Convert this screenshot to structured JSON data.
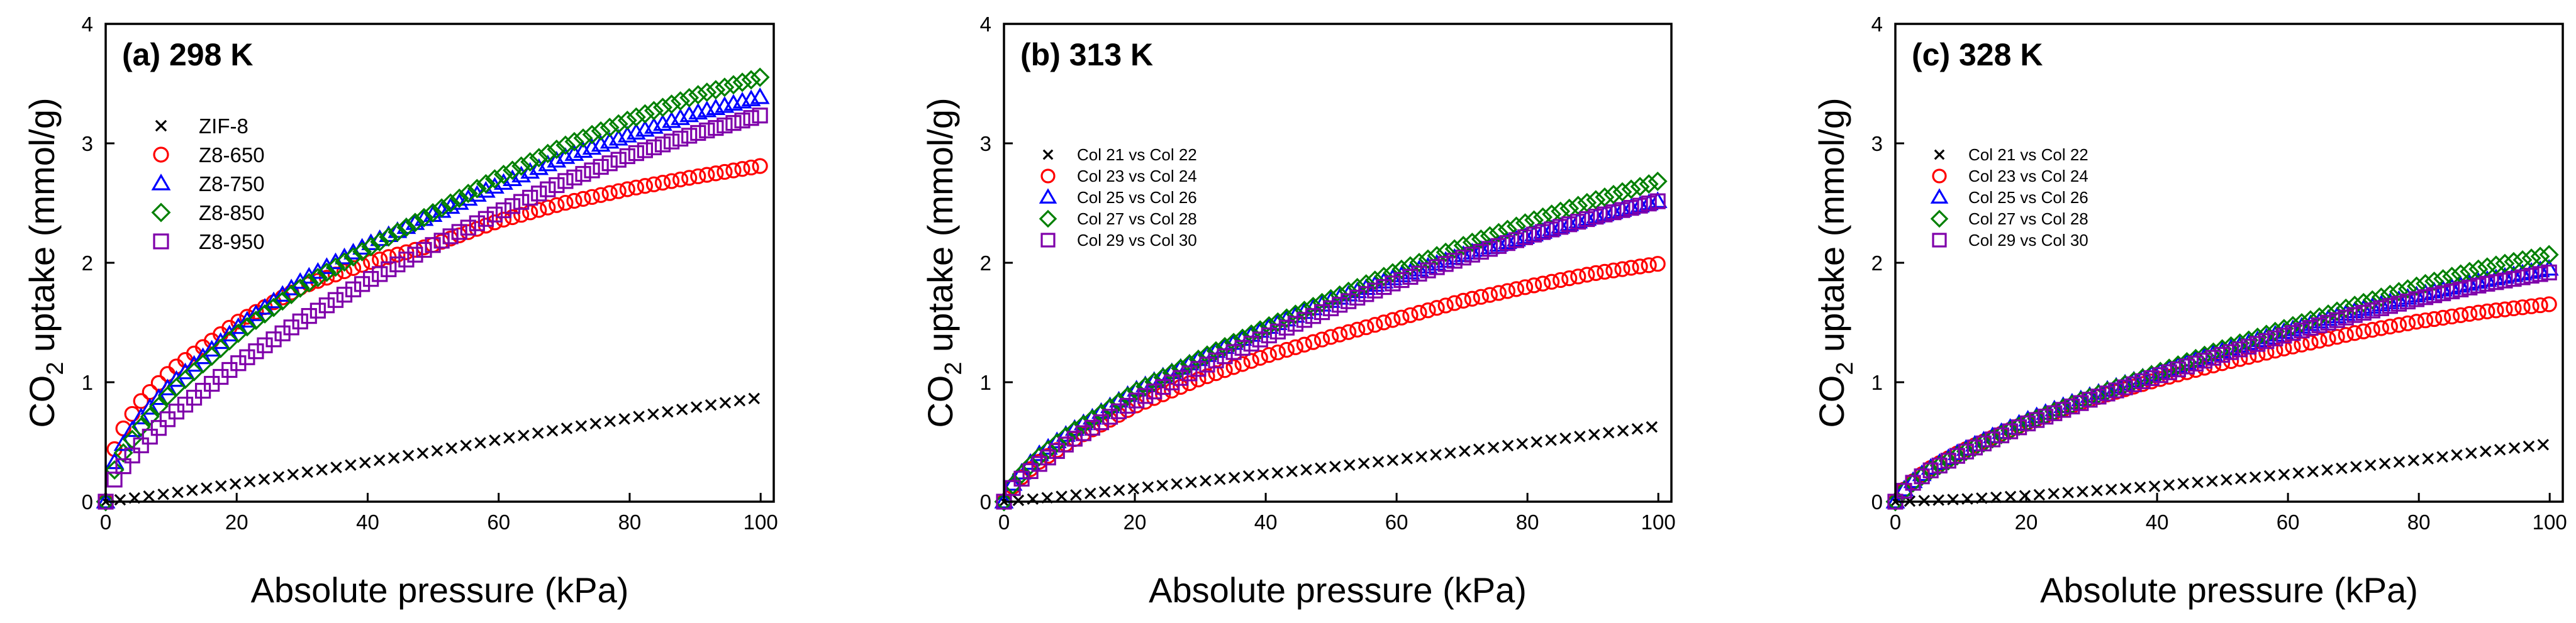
{
  "chart_data": [
    {
      "type": "scatter",
      "title": "(a) 298 K",
      "xlabel": "Absolute pressure (kPa)",
      "ylabel_main": "CO",
      "ylabel_sub": "2",
      "ylabel_rest": " uptake (mmol/g)",
      "xlim": [
        0,
        102
      ],
      "ylim": [
        0,
        4
      ],
      "xticks": [
        0,
        20,
        40,
        60,
        80,
        100
      ],
      "yticks": [
        0,
        1,
        2,
        3,
        4
      ],
      "xtick_labels": [
        "0",
        "20",
        "40",
        "60",
        "80",
        "100"
      ],
      "ytick_labels": [
        "0",
        "1",
        "2",
        "3",
        "4"
      ],
      "legend_position": "top-left",
      "series": [
        {
          "name": "ZIF-8",
          "marker": "cross",
          "color": "#000000",
          "x": [
            0,
            10,
            20,
            30,
            40,
            50,
            60,
            70,
            80,
            90,
            101
          ],
          "y": [
            0,
            0.07,
            0.15,
            0.24,
            0.33,
            0.42,
            0.52,
            0.61,
            0.7,
            0.79,
            0.88
          ]
        },
        {
          "name": "Z8-650",
          "marker": "circle",
          "color": "#ff0000",
          "x": [
            0,
            1,
            2,
            5,
            10,
            20,
            30,
            40,
            50,
            60,
            70,
            80,
            90,
            101
          ],
          "y": [
            0,
            0.38,
            0.55,
            0.82,
            1.1,
            1.5,
            1.8,
            2.0,
            2.15,
            2.35,
            2.5,
            2.62,
            2.72,
            2.82
          ]
        },
        {
          "name": "Z8-750",
          "marker": "triangle",
          "color": "#0000ff",
          "x": [
            0,
            1,
            2,
            5,
            10,
            20,
            30,
            40,
            50,
            60,
            70,
            80,
            90,
            101
          ],
          "y": [
            0,
            0.28,
            0.42,
            0.68,
            0.98,
            1.45,
            1.85,
            2.15,
            2.4,
            2.65,
            2.88,
            3.07,
            3.25,
            3.4
          ]
        },
        {
          "name": "Z8-850",
          "marker": "diamond",
          "color": "#008000",
          "x": [
            0,
            1,
            2,
            5,
            10,
            20,
            30,
            40,
            50,
            60,
            70,
            80,
            90,
            101
          ],
          "y": [
            0,
            0.22,
            0.35,
            0.6,
            0.92,
            1.4,
            1.8,
            2.12,
            2.42,
            2.72,
            2.98,
            3.2,
            3.4,
            3.57
          ]
        },
        {
          "name": "Z8-950",
          "marker": "square",
          "color": "#7f00aa",
          "x": [
            0,
            1,
            2,
            5,
            10,
            20,
            30,
            40,
            50,
            60,
            70,
            80,
            90,
            101
          ],
          "y": [
            0,
            0.15,
            0.25,
            0.45,
            0.72,
            1.15,
            1.52,
            1.85,
            2.15,
            2.42,
            2.68,
            2.9,
            3.08,
            3.25
          ]
        }
      ]
    },
    {
      "type": "scatter",
      "title": "(b) 313 K",
      "xlabel": "Absolute pressure (kPa)",
      "ylabel_main": "CO",
      "ylabel_sub": "2",
      "ylabel_rest": " uptake (mmol/g)",
      "xlim": [
        0,
        102
      ],
      "ylim": [
        0,
        4
      ],
      "xticks": [
        0,
        20,
        40,
        60,
        80,
        100
      ],
      "yticks": [
        0,
        1,
        2,
        3,
        4
      ],
      "xtick_labels": [
        "0",
        "20",
        "40",
        "60",
        "80",
        "100"
      ],
      "ytick_labels": [
        "0",
        "1",
        "2",
        "3",
        "4"
      ],
      "legend_position": "top-left",
      "series": [
        {
          "name": "Col 21 vs Col 22",
          "marker": "cross",
          "color": "#000000",
          "x": [
            0,
            10,
            20,
            30,
            40,
            50,
            60,
            70,
            80,
            90,
            101
          ],
          "y": [
            0,
            0.05,
            0.11,
            0.17,
            0.23,
            0.29,
            0.35,
            0.42,
            0.49,
            0.56,
            0.64
          ]
        },
        {
          "name": "Col 23 vs Col 24",
          "marker": "circle",
          "color": "#ff0000",
          "x": [
            0,
            1,
            2,
            5,
            10,
            20,
            30,
            40,
            50,
            60,
            70,
            80,
            90,
            101
          ],
          "y": [
            0,
            0.1,
            0.17,
            0.32,
            0.5,
            0.8,
            1.03,
            1.22,
            1.38,
            1.53,
            1.68,
            1.8,
            1.91,
            2.0
          ]
        },
        {
          "name": "Col 25 vs Col 26",
          "marker": "triangle",
          "color": "#0000ff",
          "x": [
            0,
            1,
            2,
            5,
            10,
            20,
            30,
            40,
            50,
            60,
            70,
            80,
            90,
            101
          ],
          "y": [
            0,
            0.12,
            0.2,
            0.38,
            0.58,
            0.93,
            1.2,
            1.45,
            1.68,
            1.88,
            2.06,
            2.22,
            2.38,
            2.53
          ]
        },
        {
          "name": "Col 27 vs Col 28",
          "marker": "diamond",
          "color": "#008000",
          "x": [
            0,
            1,
            2,
            5,
            10,
            20,
            30,
            40,
            50,
            60,
            70,
            80,
            90,
            101
          ],
          "y": [
            0,
            0.11,
            0.19,
            0.36,
            0.57,
            0.92,
            1.2,
            1.46,
            1.7,
            1.93,
            2.14,
            2.34,
            2.52,
            2.7
          ]
        },
        {
          "name": "Col 29 vs Col 30",
          "marker": "square",
          "color": "#7f00aa",
          "x": [
            0,
            1,
            2,
            5,
            10,
            20,
            30,
            40,
            50,
            60,
            70,
            80,
            90,
            101
          ],
          "y": [
            0,
            0.09,
            0.16,
            0.3,
            0.5,
            0.84,
            1.12,
            1.38,
            1.62,
            1.84,
            2.04,
            2.22,
            2.38,
            2.53
          ]
        }
      ]
    },
    {
      "type": "scatter",
      "title": "(c) 328 K",
      "xlabel": "Absolute pressure (kPa)",
      "ylabel_main": "CO",
      "ylabel_sub": "2",
      "ylabel_rest": " uptake (mmol/g)",
      "xlim": [
        0,
        102
      ],
      "ylim": [
        0,
        4
      ],
      "xticks": [
        0,
        20,
        40,
        60,
        80,
        100
      ],
      "yticks": [
        0,
        1,
        2,
        3,
        4
      ],
      "xtick_labels": [
        "0",
        "20",
        "40",
        "60",
        "80",
        "100"
      ],
      "ytick_labels": [
        "0",
        "1",
        "2",
        "3",
        "4"
      ],
      "legend_position": "top-left",
      "series": [
        {
          "name": "Col 21 vs Col 22",
          "marker": "cross",
          "color": "#000000",
          "x": [
            0,
            10,
            20,
            30,
            40,
            50,
            60,
            70,
            80,
            90,
            101
          ],
          "y": [
            0,
            0.02,
            0.05,
            0.09,
            0.13,
            0.18,
            0.23,
            0.29,
            0.35,
            0.42,
            0.49
          ]
        },
        {
          "name": "Col 23 vs Col 24",
          "marker": "circle",
          "color": "#ff0000",
          "x": [
            0,
            1,
            2,
            5,
            10,
            20,
            30,
            40,
            50,
            60,
            70,
            80,
            90,
            101
          ],
          "y": [
            0,
            0.08,
            0.14,
            0.27,
            0.42,
            0.66,
            0.86,
            1.02,
            1.16,
            1.29,
            1.41,
            1.51,
            1.59,
            1.66
          ]
        },
        {
          "name": "Col 25 vs Col 26",
          "marker": "triangle",
          "color": "#0000ff",
          "x": [
            0,
            1,
            2,
            5,
            10,
            20,
            30,
            40,
            50,
            60,
            70,
            80,
            90,
            101
          ],
          "y": [
            0,
            0.08,
            0.14,
            0.27,
            0.42,
            0.68,
            0.89,
            1.08,
            1.26,
            1.43,
            1.59,
            1.73,
            1.85,
            1.96
          ]
        },
        {
          "name": "Col 27 vs Col 28",
          "marker": "diamond",
          "color": "#008000",
          "x": [
            0,
            1,
            2,
            5,
            10,
            20,
            30,
            40,
            50,
            60,
            70,
            80,
            90,
            101
          ],
          "y": [
            0,
            0.07,
            0.13,
            0.25,
            0.4,
            0.66,
            0.88,
            1.08,
            1.28,
            1.46,
            1.64,
            1.81,
            1.96,
            2.08
          ]
        },
        {
          "name": "Col 29 vs Col 30",
          "marker": "square",
          "color": "#7f00aa",
          "x": [
            0,
            1,
            2,
            5,
            10,
            20,
            30,
            40,
            50,
            60,
            70,
            80,
            90,
            101
          ],
          "y": [
            0,
            0.07,
            0.13,
            0.25,
            0.4,
            0.65,
            0.86,
            1.05,
            1.23,
            1.4,
            1.56,
            1.7,
            1.82,
            1.93
          ]
        }
      ]
    }
  ]
}
